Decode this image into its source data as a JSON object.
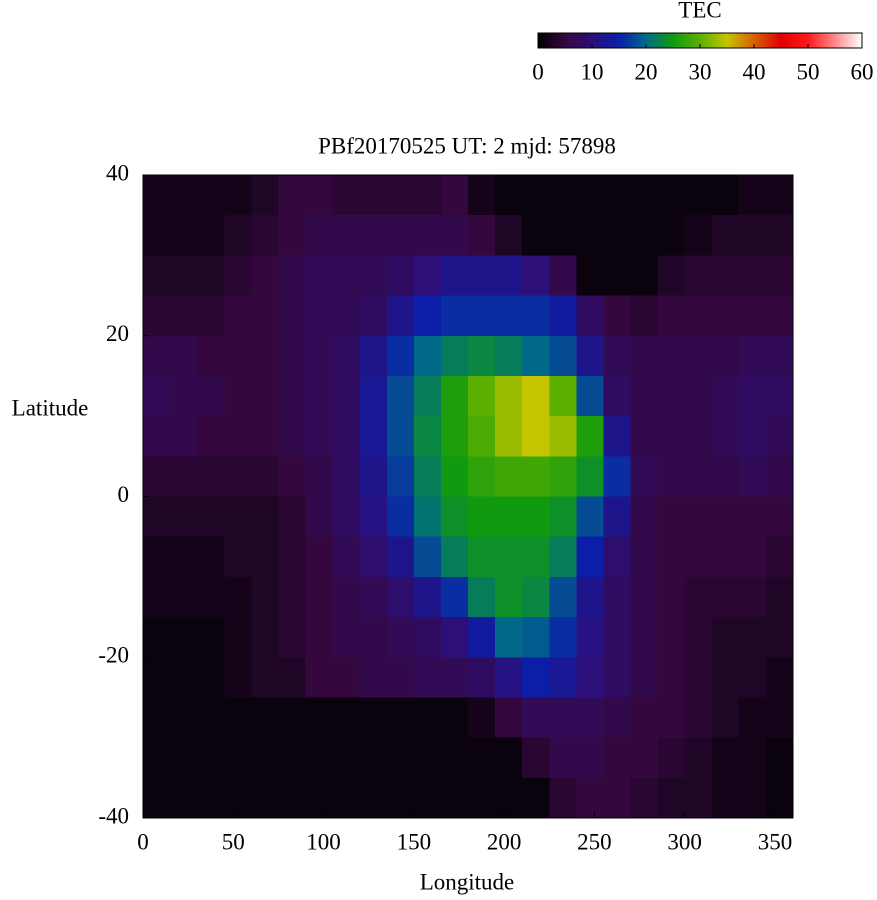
{
  "chart_data": {
    "type": "heatmap",
    "title": "PBf20170525  UT: 2  mjd: 57898",
    "x_label": "Longitude",
    "y_label": "Latitude",
    "colorbar_label": "TEC",
    "x": [
      7.5,
      22.5,
      37.5,
      52.5,
      67.5,
      82.5,
      97.5,
      112.5,
      127.5,
      142.5,
      157.5,
      172.5,
      187.5,
      202.5,
      217.5,
      232.5,
      247.5,
      262.5,
      277.5,
      292.5,
      307.5,
      322.5,
      337.5,
      352.5
    ],
    "y": [
      37.5,
      32.5,
      27.5,
      22.5,
      17.5,
      12.5,
      7.5,
      2.5,
      -2.5,
      -7.5,
      -12.5,
      -17.5,
      -22.5,
      -27.5,
      -32.5,
      -37.5
    ],
    "z": [
      [
        2,
        2,
        2,
        2,
        3,
        5,
        5,
        4,
        4,
        4,
        4,
        5,
        2,
        1,
        1,
        1,
        1,
        1,
        1,
        1,
        1,
        1,
        2,
        2
      ],
      [
        2,
        2,
        2,
        3,
        4,
        5,
        6,
        6,
        6,
        6,
        6,
        6,
        5,
        3,
        1,
        1,
        1,
        1,
        1,
        1,
        2,
        3,
        3,
        3
      ],
      [
        3,
        3,
        3,
        4,
        5,
        6,
        7,
        7,
        7,
        8,
        10,
        12,
        12,
        12,
        10,
        6,
        1,
        1,
        1,
        3,
        4,
        4,
        4,
        4
      ],
      [
        4,
        4,
        4,
        5,
        5,
        6,
        7,
        7,
        8,
        12,
        15,
        16,
        16,
        16,
        16,
        14,
        8,
        5,
        4,
        5,
        5,
        5,
        5,
        5
      ],
      [
        6,
        6,
        5,
        5,
        5,
        6,
        7,
        8,
        12,
        16,
        20,
        22,
        23,
        22,
        20,
        18,
        12,
        7,
        6,
        6,
        6,
        6,
        7,
        7
      ],
      [
        7,
        6,
        6,
        5,
        5,
        6,
        7,
        8,
        13,
        18,
        22,
        26,
        30,
        33,
        35,
        30,
        18,
        8,
        6,
        6,
        6,
        7,
        8,
        8
      ],
      [
        6,
        6,
        5,
        5,
        5,
        6,
        7,
        8,
        13,
        18,
        23,
        26,
        29,
        33,
        35,
        33,
        26,
        12,
        6,
        6,
        6,
        7,
        8,
        7
      ],
      [
        4,
        4,
        4,
        4,
        4,
        5,
        6,
        8,
        12,
        17,
        22,
        25,
        27,
        28,
        28,
        27,
        24,
        16,
        7,
        6,
        6,
        6,
        7,
        6
      ],
      [
        3,
        3,
        3,
        3,
        3,
        4,
        6,
        8,
        11,
        16,
        21,
        24,
        25,
        25,
        25,
        24,
        18,
        12,
        6,
        5,
        5,
        5,
        5,
        5
      ],
      [
        2,
        2,
        2,
        3,
        3,
        4,
        5,
        7,
        9,
        12,
        18,
        22,
        24,
        24,
        24,
        22,
        15,
        9,
        6,
        5,
        5,
        5,
        5,
        4
      ],
      [
        2,
        2,
        2,
        2,
        3,
        4,
        5,
        6,
        7,
        9,
        12,
        16,
        22,
        24,
        23,
        18,
        12,
        8,
        6,
        5,
        4,
        4,
        4,
        3
      ],
      [
        1,
        1,
        1,
        2,
        3,
        4,
        5,
        6,
        6,
        7,
        8,
        10,
        14,
        20,
        19,
        16,
        11,
        8,
        6,
        5,
        4,
        3,
        3,
        3
      ],
      [
        1,
        1,
        1,
        2,
        3,
        3,
        5,
        5,
        6,
        6,
        7,
        7,
        8,
        11,
        15,
        13,
        10,
        8,
        6,
        5,
        4,
        3,
        3,
        2
      ],
      [
        1,
        1,
        1,
        1,
        1,
        1,
        1,
        1,
        1,
        1,
        1,
        1,
        2,
        5,
        7,
        7,
        7,
        6,
        5,
        5,
        4,
        3,
        2,
        2
      ],
      [
        1,
        1,
        1,
        1,
        1,
        1,
        1,
        1,
        1,
        1,
        1,
        1,
        1,
        1,
        4,
        6,
        6,
        5,
        5,
        4,
        3,
        2,
        2,
        1
      ],
      [
        1,
        1,
        1,
        1,
        1,
        1,
        1,
        1,
        1,
        1,
        1,
        1,
        1,
        1,
        1,
        4,
        5,
        5,
        4,
        3,
        3,
        2,
        2,
        1
      ]
    ],
    "xlim": [
      0,
      360
    ],
    "ylim": [
      -40,
      40
    ],
    "xticks": [
      0,
      50,
      100,
      150,
      200,
      250,
      300,
      350
    ],
    "yticks": [
      -40,
      -20,
      0,
      20,
      40
    ],
    "clim": [
      0,
      60
    ],
    "cticks": [
      0,
      10,
      20,
      30,
      40,
      50,
      60
    ],
    "colormap": [
      "#000000",
      "#34083f",
      "#2c0f78",
      "#0c1ea8",
      "#006a88",
      "#109a10",
      "#5cb000",
      "#c4c400",
      "#d86000",
      "#e00000",
      "#ff1a1a",
      "#ff8a8a",
      "#ffffff"
    ]
  }
}
